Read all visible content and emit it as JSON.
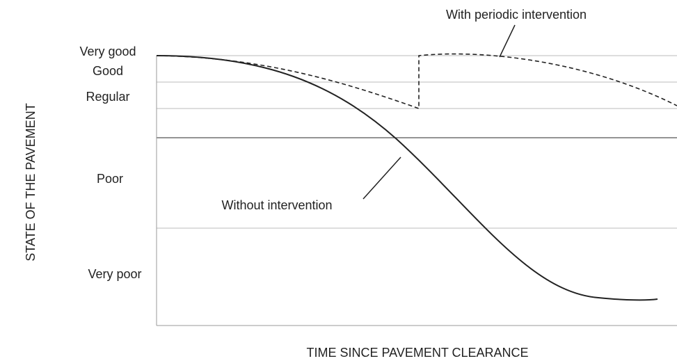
{
  "title_y": "STATE OF THE PAVEMENT",
  "title_x": "TIME SINCE PAVEMENT CLEARANCE",
  "levels": [
    "Very good",
    "Good",
    "Regular",
    "Poor",
    "Very poor"
  ],
  "annotations": {
    "with": "With periodic intervention",
    "without": "Without intervention"
  }
}
